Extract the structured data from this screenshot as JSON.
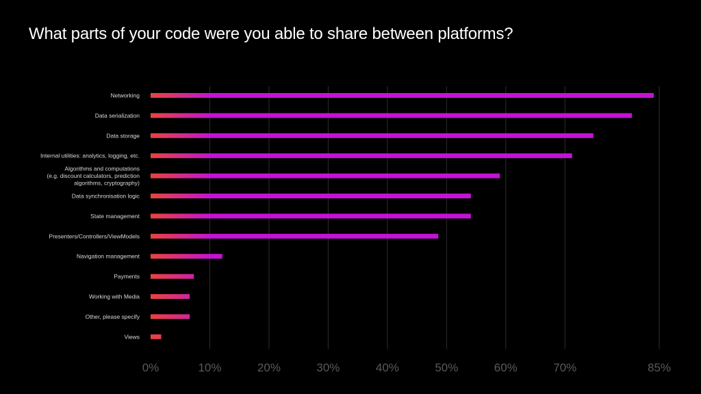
{
  "title": "What parts of your code were you able to share between platforms?",
  "colors": {
    "bar_start": "#e8453c",
    "bar_end": "#c412d6",
    "grid": "#2e2e2e",
    "tick_label": "#5a5a5a",
    "category_label": "#d9d9d9"
  },
  "chart_data": {
    "type": "bar",
    "orientation": "horizontal",
    "title": "What parts of your code were you able to share between platforms?",
    "xlabel": "",
    "ylabel": "",
    "xlim": [
      0,
      85
    ],
    "grid": true,
    "x_ticks": [
      0,
      10,
      20,
      30,
      40,
      50,
      60,
      70,
      85
    ],
    "x_tick_labels": [
      "0%",
      "10%",
      "20%",
      "30%",
      "40%",
      "50%",
      "60%",
      "70%",
      "85%"
    ],
    "categories": [
      [
        "Networking"
      ],
      [
        "Data serialization"
      ],
      [
        "Data storage"
      ],
      [
        "Internal utilities: analytics, logging, etc."
      ],
      [
        "Algorithms and computations",
        "(e.g. discount calculators, prediction",
        "algorithms, cryptography)"
      ],
      [
        "Data synchronisation logic"
      ],
      [
        "State management"
      ],
      [
        "Presenters/Controllers/ViewModels"
      ],
      [
        "Navigation management"
      ],
      [
        "Payments"
      ],
      [
        "Working with Media"
      ],
      [
        "Other, please specify"
      ],
      [
        "Views"
      ]
    ],
    "values": [
      85,
      81.3,
      74.8,
      71.2,
      59,
      54.1,
      54.1,
      48.6,
      12.1,
      7.3,
      6.6,
      6.6,
      1.8
    ]
  }
}
